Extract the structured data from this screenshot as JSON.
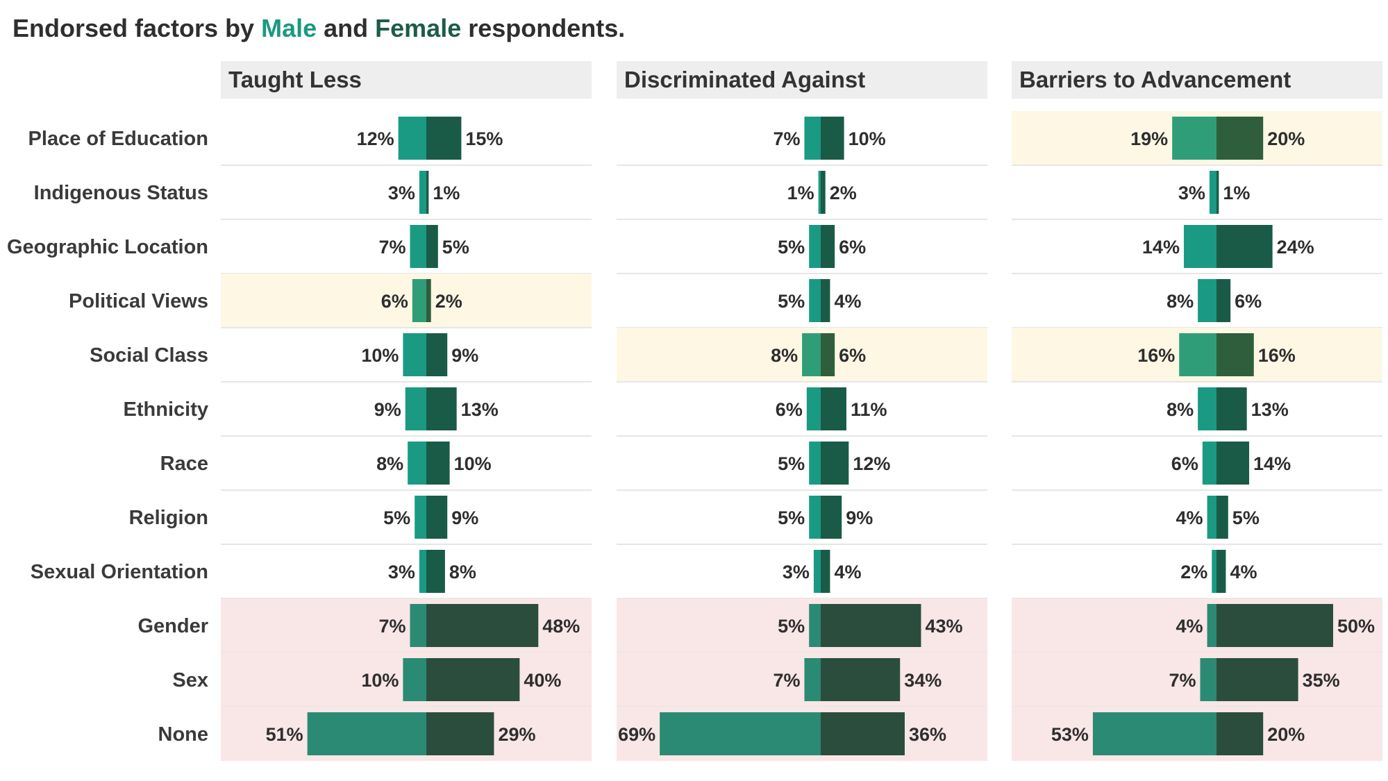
{
  "chart_data": {
    "type": "bar",
    "title": {
      "prefix": "Endorsed factors by ",
      "male_word": "Male",
      "middle": " and ",
      "female_word": "Female",
      "suffix": " respondents."
    },
    "categories": [
      "Place of Education",
      "Indigenous Status",
      "Geographic Location",
      "Political Views",
      "Social Class",
      "Ethnicity",
      "Race",
      "Religion",
      "Sexual Orientation",
      "Gender",
      "Sex",
      "None"
    ],
    "unit": "%",
    "panels": [
      {
        "name": "Taught Less",
        "male": [
          12,
          3,
          7,
          6,
          10,
          9,
          8,
          5,
          3,
          7,
          10,
          51
        ],
        "female": [
          15,
          1,
          5,
          2,
          9,
          13,
          10,
          9,
          8,
          48,
          40,
          29
        ],
        "highlight": [
          "none",
          "none",
          "none",
          "yellow",
          "none",
          "none",
          "none",
          "none",
          "none",
          "pink",
          "pink",
          "pink"
        ]
      },
      {
        "name": "Discriminated Against",
        "male": [
          7,
          1,
          5,
          5,
          8,
          6,
          5,
          5,
          3,
          5,
          7,
          69
        ],
        "female": [
          10,
          2,
          6,
          4,
          6,
          11,
          12,
          9,
          4,
          43,
          34,
          36
        ],
        "highlight": [
          "none",
          "none",
          "none",
          "none",
          "yellow",
          "none",
          "none",
          "none",
          "none",
          "pink",
          "pink",
          "pink"
        ]
      },
      {
        "name": "Barriers to Advancement",
        "male": [
          19,
          3,
          14,
          8,
          16,
          8,
          6,
          4,
          2,
          4,
          7,
          53
        ],
        "female": [
          20,
          1,
          24,
          6,
          16,
          13,
          14,
          5,
          4,
          50,
          35,
          20
        ],
        "highlight": [
          "yellow",
          "none",
          "none",
          "none",
          "yellow",
          "none",
          "none",
          "none",
          "none",
          "pink",
          "pink",
          "pink"
        ]
      }
    ],
    "legend": "in title",
    "colors": {
      "title_text": "#2e2e2e",
      "male_title": "#1a9a80",
      "female_title": "#1d5c47",
      "panel_header_bg": "#eeeeee",
      "row_divider": "#e6e6e6",
      "highlight_yellow": "#fdf7e4",
      "highlight_pink": "#f9e6e6",
      "bar_male": {
        "none": "#1a9a83",
        "yellow": "#2f9e78",
        "pink": "#2b8a73"
      },
      "bar_female": {
        "none": "#1a5b48",
        "yellow": "#2e5e3c",
        "pink": "#2b4d3d"
      }
    }
  }
}
